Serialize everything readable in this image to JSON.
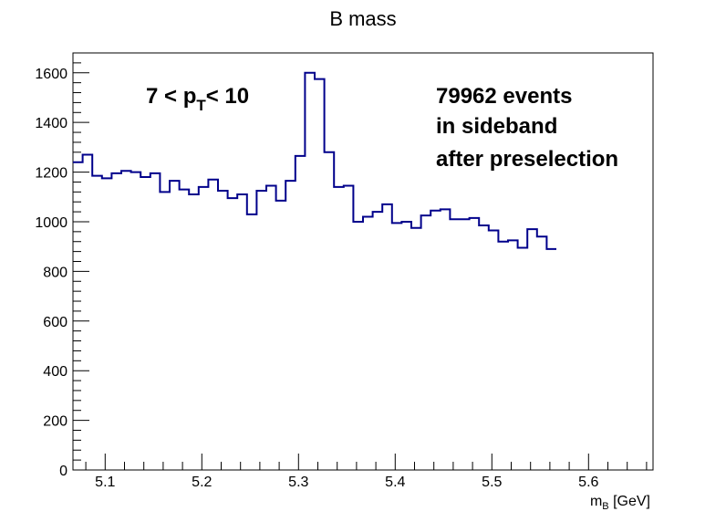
{
  "chart_data": {
    "type": "histogram",
    "title": "B mass",
    "xlabel_main": "m",
    "xlabel_sub": "B",
    "xlabel_unit": " [GeV]",
    "xlim": [
      5.0667,
      5.6667
    ],
    "ylim": [
      0,
      1680
    ],
    "bin_width": 0.01,
    "x_start": 5.0667,
    "x_ticks": [
      5.1,
      5.2,
      5.3,
      5.4,
      5.5,
      5.6
    ],
    "x_tick_labels": [
      "5.1",
      "5.2",
      "5.3",
      "5.4",
      "5.5",
      "5.6"
    ],
    "y_ticks": [
      0,
      200,
      400,
      600,
      800,
      1000,
      1200,
      1400,
      1600
    ],
    "y_tick_labels": [
      "0",
      "200",
      "400",
      "600",
      "800",
      "1000",
      "1200",
      "1400",
      "1600"
    ],
    "values": [
      1240,
      1270,
      1185,
      1175,
      1195,
      1205,
      1200,
      1180,
      1195,
      1120,
      1165,
      1130,
      1110,
      1140,
      1170,
      1125,
      1095,
      1110,
      1030,
      1125,
      1145,
      1085,
      1165,
      1265,
      1600,
      1575,
      1280,
      1140,
      1145,
      1000,
      1020,
      1040,
      1070,
      995,
      1000,
      975,
      1025,
      1045,
      1050,
      1010,
      1010,
      1015,
      985,
      965,
      920,
      925,
      895,
      970,
      940,
      890
    ],
    "line_color": "#00008b",
    "annotations": {
      "pt_cut": {
        "pre": "7 < p",
        "sub": "T",
        "post": "< 10"
      },
      "events_line1": "79962 events",
      "events_line2": "in sideband",
      "events_line3": "after preselection"
    }
  }
}
